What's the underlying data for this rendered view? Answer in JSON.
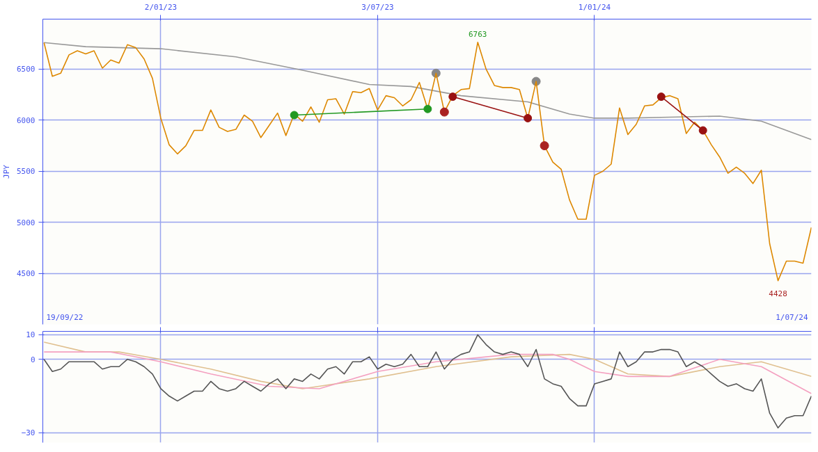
{
  "chart_data": [
    {
      "type": "line",
      "ylabel": "JPY",
      "x": [
        "2022-09-26",
        "2022-10-03",
        "2022-10-10",
        "2022-10-17",
        "2022-10-24",
        "2022-10-31",
        "2022-11-07",
        "2022-11-14",
        "2022-11-21",
        "2022-11-28",
        "2022-12-05",
        "2022-12-12",
        "2022-12-19",
        "2022-12-26",
        "2023-01-02",
        "2023-01-09",
        "2023-01-16",
        "2023-01-23",
        "2023-01-30",
        "2023-02-06",
        "2023-02-13",
        "2023-02-20",
        "2023-02-27",
        "2023-03-06",
        "2023-03-13",
        "2023-03-20",
        "2023-03-27",
        "2023-04-03",
        "2023-04-10",
        "2023-04-17",
        "2023-04-24",
        "2023-05-01",
        "2023-05-08",
        "2023-05-15",
        "2023-05-22",
        "2023-05-29",
        "2023-06-05",
        "2023-06-12",
        "2023-06-19",
        "2023-06-26",
        "2023-07-03",
        "2023-07-10",
        "2023-07-17",
        "2023-07-24",
        "2023-07-31",
        "2023-08-07",
        "2023-08-14",
        "2023-08-21",
        "2023-08-28",
        "2023-09-04",
        "2023-09-11",
        "2023-09-18",
        "2023-09-25",
        "2023-10-02",
        "2023-10-09",
        "2023-10-16",
        "2023-10-23",
        "2023-10-30",
        "2023-11-06",
        "2023-11-13",
        "2023-11-20",
        "2023-11-27",
        "2023-12-04",
        "2023-12-11",
        "2023-12-18",
        "2023-12-25",
        "2024-01-01",
        "2024-01-08",
        "2024-01-15",
        "2024-01-22",
        "2024-01-29",
        "2024-02-05",
        "2024-02-12",
        "2024-02-19",
        "2024-02-26",
        "2024-03-04",
        "2024-03-11",
        "2024-03-18",
        "2024-03-25",
        "2024-04-01",
        "2024-04-08",
        "2024-04-15",
        "2024-04-22",
        "2024-04-29",
        "2024-05-06",
        "2024-05-13",
        "2024-05-20",
        "2024-05-27",
        "2024-06-03",
        "2024-06-10",
        "2024-06-17",
        "2024-06-24",
        "2024-07-01"
      ],
      "series": [
        {
          "type": "scatter",
          "color": "#888888",
          "marker": "circle",
          "x": [
            "2023-08-21",
            "2023-11-13"
          ],
          "values": [
            6460,
            6380
          ]
        },
        {
          "color": "#999999",
          "x": [
            "2022-09-26",
            "2022-10-31",
            "2023-01-02",
            "2023-03-06",
            "2023-05-01",
            "2023-06-26",
            "2023-07-31",
            "2023-09-11",
            "2023-11-06",
            "2023-12-11",
            "2024-01-01",
            "2024-01-29",
            "2024-03-04",
            "2024-04-15",
            "2024-05-20",
            "2024-07-01"
          ],
          "values": [
            6760,
            6720,
            6700,
            6620,
            6490,
            6350,
            6330,
            6240,
            6180,
            6060,
            6020,
            6020,
            6030,
            6040,
            5990,
            5810
          ]
        },
        {
          "color": "#dd8800",
          "values": [
            6760,
            6430,
            6460,
            6640,
            6680,
            6650,
            6680,
            6510,
            6590,
            6560,
            6740,
            6710,
            6600,
            6410,
            6020,
            5760,
            5670,
            5750,
            5900,
            5900,
            6100,
            5930,
            5890,
            5910,
            6050,
            5990,
            5830,
            5950,
            6070,
            5850,
            6060,
            5990,
            6130,
            5980,
            6200,
            6210,
            6060,
            6280,
            6270,
            6310,
            6100,
            6240,
            6220,
            6140,
            6200,
            6370,
            6110,
            6460,
            6080,
            6240,
            6300,
            6310,
            6763,
            6500,
            6340,
            6320,
            6320,
            6300,
            6020,
            6380,
            5750,
            5590,
            5520,
            5220,
            5030,
            5030,
            5460,
            5500,
            5570,
            6120,
            5860,
            5960,
            6140,
            6150,
            6220,
            6240,
            6210,
            5870,
            5980,
            5900,
            5760,
            5640,
            5480,
            5540,
            5480,
            5380,
            5510,
            4790,
            4428,
            4620,
            4620,
            4600,
            4950
          ]
        },
        {
          "color": "#229922",
          "marker": "circle",
          "x": [
            "2023-04-24",
            "2023-08-14"
          ],
          "values": [
            6050,
            6110
          ]
        },
        {
          "color": "#991111",
          "marker": "circle",
          "x": [
            "2023-09-04",
            "2023-11-06"
          ],
          "values": [
            6230,
            6020
          ]
        },
        {
          "color": "#991111",
          "marker": "circle",
          "x": [
            "2024-02-26",
            "2024-04-01"
          ],
          "values": [
            6230,
            5900
          ]
        },
        {
          "type": "scatter",
          "color": "#aa2222",
          "marker": "circle",
          "x": [
            "2023-08-28",
            "2023-11-20"
          ],
          "values": [
            6080,
            5750
          ]
        }
      ],
      "xlim": [
        "2022-09-25",
        "2024-07-01"
      ],
      "xticks": [
        {
          "value": "2023-01-02",
          "label": "2/01/23"
        },
        {
          "value": "2023-07-03",
          "label": "3/07/23"
        },
        {
          "value": "2024-01-01",
          "label": "1/01/24"
        }
      ],
      "ylim": [
        4000,
        6990
      ],
      "yticks": [
        4500,
        5000,
        5500,
        6000,
        6500
      ],
      "grid": true,
      "annotations": [
        {
          "text": "6763",
          "x": "2023-09-25",
          "y": 6763
        },
        {
          "text": "4428",
          "x": "2024-06-03",
          "y": 4428
        },
        "19/09/22",
        "1/07/24"
      ]
    },
    {
      "type": "line",
      "x": [
        "2022-09-26",
        "2022-10-03",
        "2022-10-10",
        "2022-10-17",
        "2022-10-24",
        "2022-10-31",
        "2022-11-07",
        "2022-11-14",
        "2022-11-21",
        "2022-11-28",
        "2022-12-05",
        "2022-12-12",
        "2022-12-19",
        "2022-12-26",
        "2023-01-02",
        "2023-01-09",
        "2023-01-16",
        "2023-01-23",
        "2023-01-30",
        "2023-02-06",
        "2023-02-13",
        "2023-02-20",
        "2023-02-27",
        "2023-03-06",
        "2023-03-13",
        "2023-03-20",
        "2023-03-27",
        "2023-04-03",
        "2023-04-10",
        "2023-04-17",
        "2023-04-24",
        "2023-05-01",
        "2023-05-08",
        "2023-05-15",
        "2023-05-22",
        "2023-05-29",
        "2023-06-05",
        "2023-06-12",
        "2023-06-19",
        "2023-06-26",
        "2023-07-03",
        "2023-07-10",
        "2023-07-17",
        "2023-07-24",
        "2023-07-31",
        "2023-08-07",
        "2023-08-14",
        "2023-08-21",
        "2023-08-28",
        "2023-09-04",
        "2023-09-11",
        "2023-09-18",
        "2023-09-25",
        "2023-10-02",
        "2023-10-09",
        "2023-10-16",
        "2023-10-23",
        "2023-10-30",
        "2023-11-06",
        "2023-11-13",
        "2023-11-20",
        "2023-11-27",
        "2023-12-04",
        "2023-12-11",
        "2023-12-18",
        "2023-12-25",
        "2024-01-01",
        "2024-01-08",
        "2024-01-15",
        "2024-01-22",
        "2024-01-29",
        "2024-02-05",
        "2024-02-12",
        "2024-02-19",
        "2024-02-26",
        "2024-03-04",
        "2024-03-11",
        "2024-03-18",
        "2024-03-25",
        "2024-04-01",
        "2024-04-08",
        "2024-04-15",
        "2024-04-22",
        "2024-04-29",
        "2024-05-06",
        "2024-05-13",
        "2024-05-20",
        "2024-05-27",
        "2024-06-03",
        "2024-06-10",
        "2024-06-17",
        "2024-06-24",
        "2024-07-01"
      ],
      "series": [
        {
          "color": "#e0c090",
          "x": [
            "2022-09-26",
            "2022-10-31",
            "2022-11-28",
            "2023-01-02",
            "2023-02-13",
            "2023-03-27",
            "2023-05-01",
            "2023-06-26",
            "2023-08-21",
            "2023-10-23",
            "2023-12-11",
            "2024-01-01",
            "2024-01-29",
            "2024-03-04",
            "2024-04-15",
            "2024-05-20",
            "2024-07-01"
          ],
          "values": [
            7,
            3,
            3,
            0,
            -4,
            -9,
            -12,
            -8,
            -3,
            1,
            2,
            0,
            -6,
            -7,
            -3,
            -1,
            -7
          ]
        },
        {
          "color": "#f4a0c0",
          "x": [
            "2022-09-26",
            "2022-11-21",
            "2023-01-02",
            "2023-02-13",
            "2023-04-03",
            "2023-05-15",
            "2023-07-03",
            "2023-08-21",
            "2023-10-23",
            "2023-11-27",
            "2023-12-11",
            "2024-01-01",
            "2024-01-29",
            "2024-03-04",
            "2024-04-15",
            "2024-05-20",
            "2024-07-01"
          ],
          "values": [
            3,
            3,
            -1,
            -6,
            -11,
            -12,
            -5,
            -1,
            2,
            2,
            0,
            -5,
            -7,
            -7,
            0,
            -3,
            -14
          ]
        },
        {
          "color": "#555555",
          "values": [
            0,
            -5,
            -4,
            -1,
            -1,
            -1,
            -1,
            -4,
            -3,
            -3,
            0,
            -1,
            -3,
            -6,
            -12,
            -15,
            -17,
            -15,
            -13,
            -13,
            -9,
            -12,
            -13,
            -12,
            -9,
            -11,
            -13,
            -10,
            -8,
            -12,
            -8,
            -9,
            -6,
            -8,
            -4,
            -3,
            -6,
            -1,
            -1,
            1,
            -4,
            -2,
            -3,
            -2,
            2,
            -3,
            -3,
            3,
            -4,
            0,
            2,
            3,
            10,
            6,
            3,
            2,
            3,
            2,
            -3,
            4,
            -8,
            -10,
            -11,
            -16,
            -19,
            -19,
            -10,
            -9,
            -8,
            3,
            -3,
            -1,
            3,
            3,
            4,
            4,
            3,
            -3,
            -1,
            -3,
            -6,
            -9,
            -11,
            -10,
            -12,
            -13,
            -8,
            -22,
            -28,
            -24,
            -23,
            -23,
            -15
          ]
        }
      ],
      "xlim": [
        "2022-09-25",
        "2024-07-01"
      ],
      "xticks": [
        {
          "value": "2023-01-02",
          "label": null
        },
        {
          "value": "2023-07-03",
          "label": null
        },
        {
          "value": "2024-01-01",
          "label": null
        }
      ],
      "ylim": [
        -34,
        11.4
      ],
      "yticks": [
        -30,
        0,
        10
      ],
      "grid": true,
      "tick_labels": "y"
    }
  ]
}
